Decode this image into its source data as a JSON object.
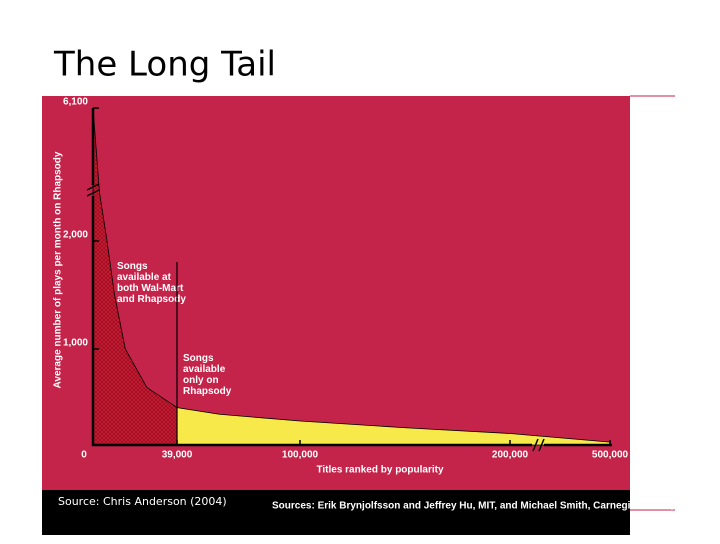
{
  "chart_data": {
    "type": "area",
    "title": "The Long Tail",
    "y_label": "Average number of plays per month on Rhapsody",
    "x_label": "Titles ranked by popularity",
    "annotations": [
      "Songs available at both Wal-Mart and Rhapsody",
      "Songs available only on Rhapsody"
    ],
    "source": "Source: Chris Anderson (2004)",
    "credits": "Sources: Erik Brynjolfsson and Jeffrey Hu, MIT, and Michael Smith, Carnegie Mellon; Barnes & Noble; Netflix; RealNetworks",
    "series": [
      {
        "color": "#d0182f",
        "x": [
          0,
          3000,
          6500,
          10000,
          15000,
          25000,
          39000
        ],
        "values": [
          6100,
          3500,
          2000,
          1500,
          1000,
          600,
          390
        ]
      },
      {
        "color": "#f7e94a",
        "x": [
          39000,
          60000,
          100000,
          150000,
          200000,
          500000
        ],
        "values": [
          390,
          320,
          250,
          180,
          120,
          30
        ]
      }
    ],
    "xlim": [
      0,
      500000
    ],
    "xticks": [
      0,
      {
        "value": 39000,
        "label": "39,000"
      },
      {
        "value": 100000,
        "label": "100,000"
      },
      {
        "value": 200000,
        "label": "200,000"
      },
      {
        "value": 500000,
        "label": "500,000"
      }
    ],
    "ylim": [
      0,
      6100
    ],
    "yticks": [
      {
        "value": 1000,
        "label": "1,000"
      },
      {
        "value": 2000,
        "label": "2,000"
      },
      {
        "value": 6100,
        "label": "6,100"
      }
    ]
  }
}
